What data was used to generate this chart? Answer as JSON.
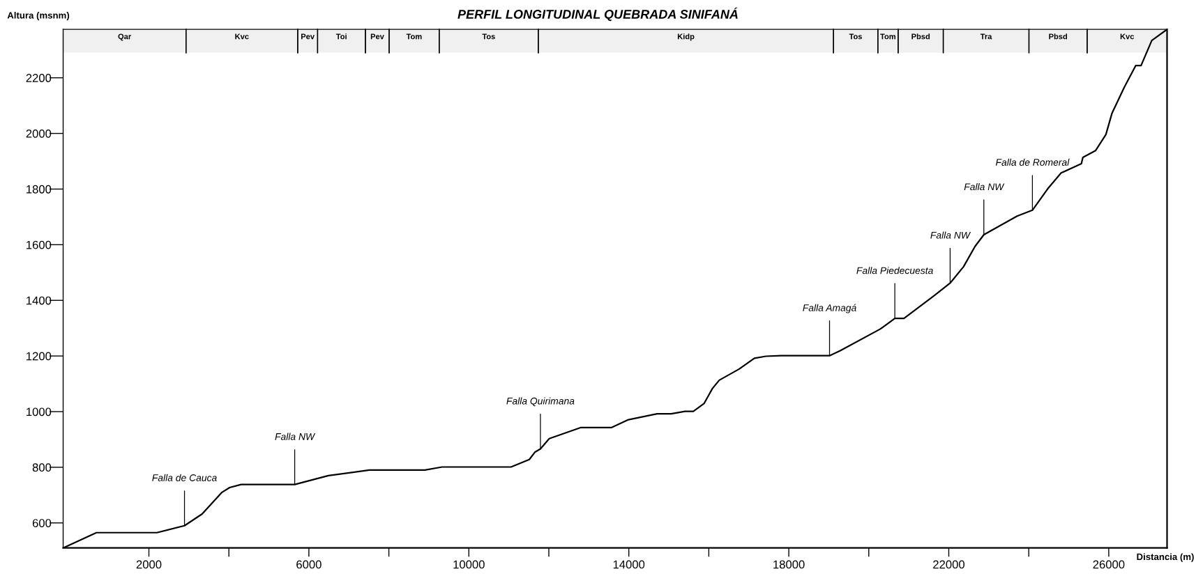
{
  "chart_data": {
    "type": "line",
    "title": "PERFIL LONGITUDINAL QUEBRADA SINIFANÁ",
    "xlabel": "Distancia (m)",
    "ylabel": "Altura (msnm)",
    "x": [
      -144,
      689,
      2201,
      2890,
      3330,
      3828,
      4019,
      4306,
      5646,
      6488,
      7512,
      8900,
      9330,
      11053,
      11512,
      11656,
      11790,
      12010,
      12804,
      13571,
      13990,
      14706,
      15059,
      15403,
      15613,
      15880,
      16090,
      16261,
      16758,
      17139,
      17426,
      17807,
      19019,
      19286,
      20288,
      20651,
      20880,
      21643,
      22034,
      22370,
      22657,
      22877,
      23709,
      24091,
      24474,
      24809,
      25316,
      25353,
      25669,
      25929,
      26082,
      26389,
      26676,
      26808,
      27076,
      27458
    ],
    "series": [
      {
        "color": "#000000",
        "values": [
          510,
          565,
          565,
          590,
          632,
          710,
          727,
          738,
          738,
          770,
          790,
          790,
          801,
          801,
          828,
          855,
          866,
          903,
          943,
          943,
          971,
          992,
          992,
          1001,
          1001,
          1029,
          1083,
          1113,
          1153,
          1192,
          1199,
          1201,
          1201,
          1219,
          1297,
          1335,
          1335,
          1418,
          1462,
          1521,
          1594,
          1636,
          1703,
          1724,
          1801,
          1858,
          1891,
          1914,
          1938,
          1996,
          2073,
          2166,
          2244,
          2244,
          2334,
          2374
        ]
      }
    ],
    "xlim": [
      -144,
      27458
    ],
    "ylim": [
      510,
      2374
    ],
    "xticks": [
      2000,
      {
        "value": 4000,
        "label": null
      },
      6000,
      {
        "value": 8000,
        "label": null
      },
      10000,
      {
        "value": 12000,
        "label": null
      },
      14000,
      {
        "value": 16000,
        "label": null
      },
      18000,
      {
        "value": 20000,
        "label": null
      },
      22000,
      {
        "value": 24000,
        "label": null
      },
      26000
    ],
    "yticks": [
      600,
      800,
      1000,
      1200,
      1400,
      1600,
      1800,
      2000,
      2200
    ],
    "grid": false,
    "marker": "none",
    "line_style": "solid",
    "annotations": [
      {
        "text": "Falla de Cauca",
        "x": 2890,
        "y": 590
      },
      {
        "text": "Falla NW",
        "x": 5646,
        "y": 738
      },
      {
        "text": "Falla Quirimana",
        "x": 11790,
        "y": 866
      },
      {
        "text": "Falla Amagá",
        "x": 19019,
        "y": 1201
      },
      {
        "text": "Falla Piedecuesta",
        "x": 20651,
        "y": 1335
      },
      {
        "text": "Falla NW",
        "x": 22034,
        "y": 1462
      },
      {
        "text": "Falla NW",
        "x": 22877,
        "y": 1636
      },
      {
        "text": "Falla de Romeral",
        "x": 24091,
        "y": 1724
      }
    ],
    "bands": [
      {
        "axis": "x",
        "from": -144,
        "to": 2928,
        "label": "Qar",
        "color": "#f0f0f0"
      },
      {
        "axis": "x",
        "from": 2928,
        "to": 5721,
        "label": "Kvc",
        "color": "#f0f0f0"
      },
      {
        "axis": "x",
        "from": 5721,
        "to": 6218,
        "label": "Pev",
        "color": "#f0f0f0"
      },
      {
        "axis": "x",
        "from": 6218,
        "to": 7414,
        "label": "Toi",
        "color": "#f0f0f0"
      },
      {
        "axis": "x",
        "from": 7414,
        "to": 8007,
        "label": "Pev",
        "color": "#f0f0f0"
      },
      {
        "axis": "x",
        "from": 8007,
        "to": 9259,
        "label": "Tom",
        "color": "#f0f0f0"
      },
      {
        "axis": "x",
        "from": 9259,
        "to": 11737,
        "label": "Tos",
        "color": "#f0f0f0"
      },
      {
        "axis": "x",
        "from": 11737,
        "to": 19118,
        "label": "Kidp",
        "color": "#f0f0f0"
      },
      {
        "axis": "x",
        "from": 19118,
        "to": 20227,
        "label": "Tos",
        "color": "#f0f0f0"
      },
      {
        "axis": "x",
        "from": 20227,
        "to": 20734,
        "label": "Tom",
        "color": "#f0f0f0"
      },
      {
        "axis": "x",
        "from": 20734,
        "to": 21862,
        "label": "Pbsd",
        "color": "#f0f0f0"
      },
      {
        "axis": "x",
        "from": 21862,
        "to": 24005,
        "label": "Tra",
        "color": "#f0f0f0"
      },
      {
        "axis": "x",
        "from": 24005,
        "to": 25460,
        "label": "Pbsd",
        "color": "#f0f0f0"
      },
      {
        "axis": "x",
        "from": 25460,
        "to": 27458,
        "label": "Kvc",
        "color": "#f0f0f0"
      }
    ]
  }
}
